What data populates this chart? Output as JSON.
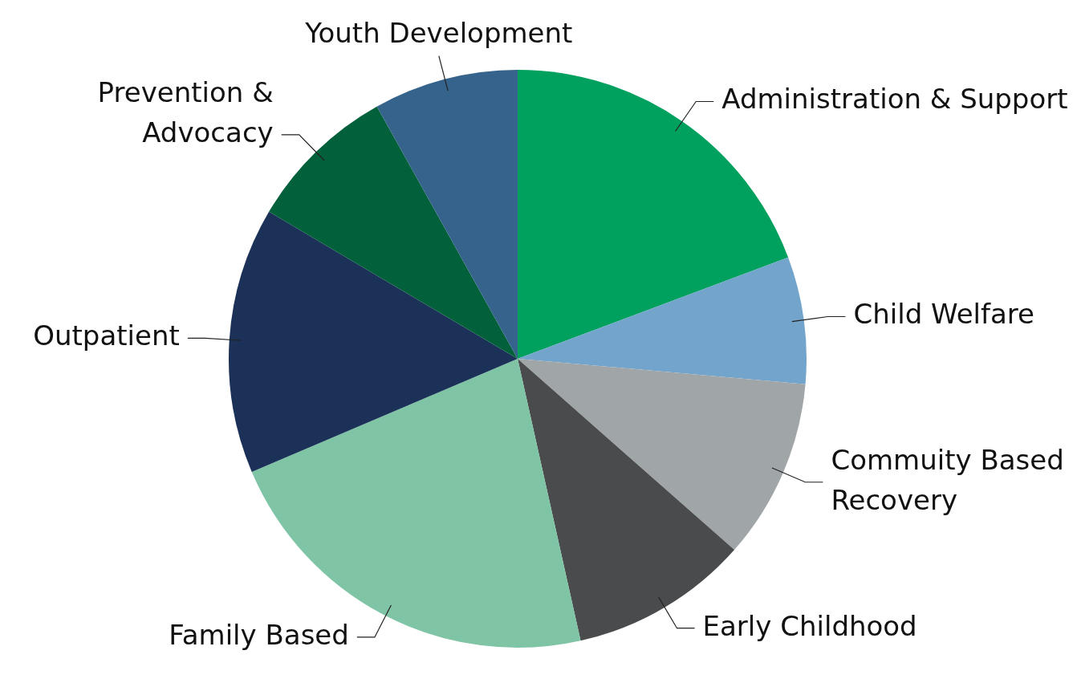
{
  "chart_data": {
    "type": "pie",
    "categories": [
      "Administration & Support",
      "Child Welfare",
      "Commuity Based Recovery",
      "Early Childhood",
      "Family Based",
      "Outpatient",
      "Prevention & Advocacy",
      "Youth Development"
    ],
    "values": [
      19.3,
      7.1,
      10.1,
      10.0,
      22.1,
      14.9,
      8.4,
      8.1
    ],
    "colors": [
      "#00a05f",
      "#73a5cc",
      "#a0a5a8",
      "#4a4b4d",
      "#7fc5a5",
      "#1b3158",
      "#02603a",
      "#35638b"
    ]
  }
}
